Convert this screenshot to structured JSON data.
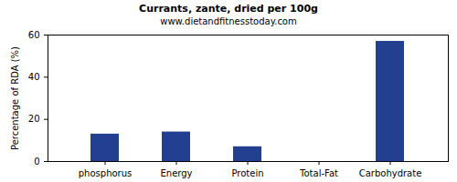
{
  "chart_data": {
    "type": "bar",
    "title": "Currants, zante, dried per 100g",
    "subtitle": "www.dietandfitnesstoday.com",
    "y_label": "Percentage of RDA (%)",
    "categories": [
      "phosphorus",
      "Energy",
      "Protein",
      "Total-Fat",
      "Carbohydrate"
    ],
    "values": [
      13,
      14,
      7,
      0,
      57
    ],
    "color": "#233f8f",
    "ylim": [
      0,
      60
    ],
    "yticks": [
      0,
      20,
      40,
      60
    ],
    "grid": false
  }
}
